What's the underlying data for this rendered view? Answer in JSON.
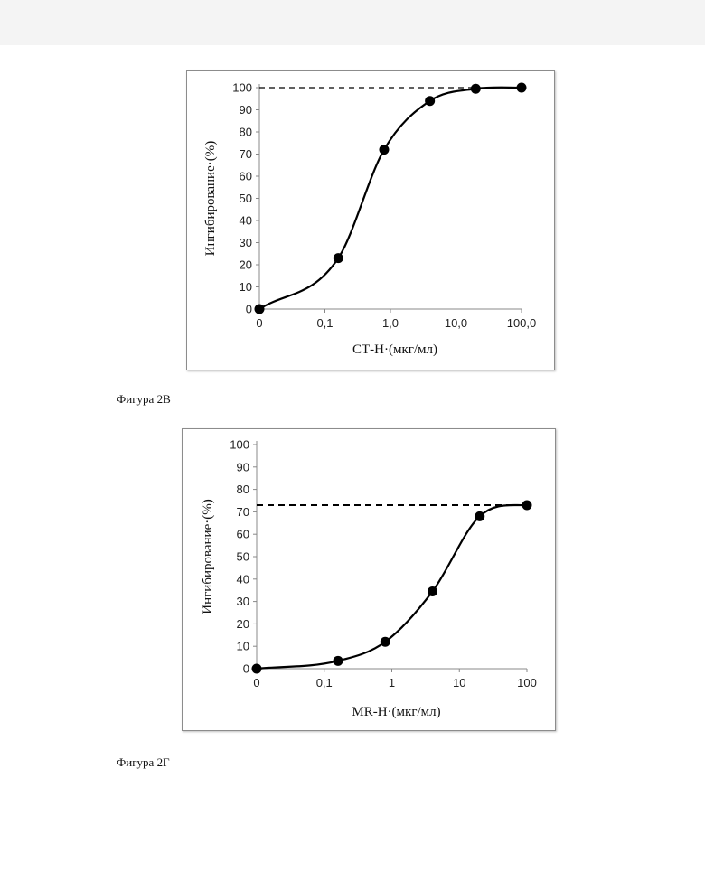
{
  "captions": {
    "fig_a": "Фигура 2В",
    "fig_b": "Фигура 2Г"
  },
  "chart_data": [
    {
      "type": "line",
      "xscale": "log-like (0, 0,1, 1,0, 10,0, 100,0)",
      "xlabel": "СТ-Н·(мкг/мл)",
      "ylabel": "Ингибирование·(%)",
      "x_tick_labels": [
        "0",
        "0,1",
        "1,0",
        "10,0",
        "100,0"
      ],
      "y_ticks": [
        "0",
        "10",
        "20",
        "30",
        "40",
        "50",
        "60",
        "70",
        "80",
        "90",
        "100"
      ],
      "ylim": [
        0,
        100
      ],
      "reference_line": 100,
      "points": [
        {
          "x": 0,
          "y": 0
        },
        {
          "x": 0.16,
          "y": 23
        },
        {
          "x": 0.8,
          "y": 72
        },
        {
          "x": 4,
          "y": 94
        },
        {
          "x": 20,
          "y": 99.5
        },
        {
          "x": 100,
          "y": 100
        }
      ],
      "grid": false,
      "marker": "filled-circle",
      "color": "#000000"
    },
    {
      "type": "line",
      "xscale": "log-like (0, 0,1, 1, 10, 100)",
      "xlabel": "MR-Н·(мкг/мл)",
      "ylabel": "Ингибирование·(%)",
      "x_tick_labels": [
        "0",
        "0,1",
        "1",
        "10",
        "100"
      ],
      "y_ticks": [
        "0",
        "10",
        "20",
        "30",
        "40",
        "50",
        "60",
        "70",
        "80",
        "90",
        "100"
      ],
      "ylim": [
        0,
        100
      ],
      "reference_line": 73,
      "points": [
        {
          "x": 0,
          "y": 0
        },
        {
          "x": 0.16,
          "y": 3.5
        },
        {
          "x": 0.8,
          "y": 12
        },
        {
          "x": 4,
          "y": 34.5
        },
        {
          "x": 20,
          "y": 68
        },
        {
          "x": 100,
          "y": 73
        }
      ],
      "grid": false,
      "marker": "filled-circle",
      "color": "#000000"
    }
  ]
}
